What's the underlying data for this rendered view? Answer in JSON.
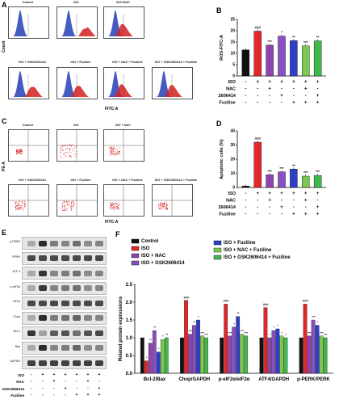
{
  "panels": {
    "a": "A",
    "b": "B",
    "c": "C",
    "d": "D",
    "e": "E",
    "f": "F"
  },
  "panelA": {
    "titles": [
      "Control",
      "ISO",
      "ISO+NAC",
      "ISO + GSK2606414",
      "ISO + Fuziline",
      "ISO + NAC + Fuziline",
      "ISO + GSK2606414 + Fuziline"
    ],
    "ylabel": "Count",
    "xlabel": "FITC-A"
  },
  "panelC": {
    "titles": [
      "Control",
      "ISO",
      "ISO + NAC",
      "ISO + GSK2606414",
      "ISO + Fuziline",
      "ISO + NAC + Fuziline",
      "ISO + GSK2606414 + Fuziline"
    ],
    "ylabel": "PE-A",
    "xlabel": "FITC-A"
  },
  "panelE": {
    "labels": [
      "p-PERK",
      "PERK",
      "ATF 4",
      "p-eIF2α",
      "eIF2α",
      "Chop",
      "Bcl-2",
      "Bax",
      "GAPDH"
    ],
    "rows": [
      "ISO",
      "NAC",
      "GSK2606414",
      "Fuziline"
    ],
    "signs": [
      [
        "-",
        "+",
        "+",
        "+",
        "+",
        "+",
        "+"
      ],
      [
        "-",
        "-",
        "+",
        "-",
        "-",
        "+",
        "-"
      ],
      [
        "-",
        "-",
        "-",
        "+",
        "-",
        "-",
        "+"
      ],
      [
        "-",
        "-",
        "-",
        "-",
        "+",
        "+",
        "+"
      ]
    ]
  },
  "groupTable": {
    "rows": [
      "ISO",
      "NAC",
      "GSK2606414",
      "Fuziline"
    ],
    "signs": [
      [
        "-",
        "+",
        "+",
        "+",
        "+",
        "+",
        "+"
      ],
      [
        "-",
        "-",
        "+",
        "-",
        "-",
        "+",
        "-"
      ],
      [
        "-",
        "-",
        "-",
        "+",
        "-",
        "-",
        "+"
      ],
      [
        "-",
        "-",
        "-",
        "-",
        "+",
        "+",
        "+"
      ]
    ]
  },
  "colors": {
    "control": "#111111",
    "iso": "#e3262a",
    "nac": "#8e44ad",
    "gsk": "#8a4fc2",
    "fuz": "#2d3fc8",
    "nacfuz": "#7ec850",
    "gskfuz": "#41b84a"
  },
  "chart_data": [
    {
      "type": "bar",
      "ylabel": "ROS-FITC-A",
      "ylim": [
        0,
        25
      ],
      "yticks": [
        0,
        5,
        10,
        15,
        20,
        25
      ],
      "values": [
        11.5,
        19.8,
        13.6,
        17.6,
        15.6,
        13.3,
        15.5
      ],
      "sig": [
        "",
        "###",
        "***",
        "*",
        "**",
        "***",
        "**"
      ]
    },
    {
      "type": "bar",
      "ylabel": "Apoptotic cells (%)",
      "ylim": [
        0,
        40
      ],
      "yticks": [
        0,
        10,
        20,
        30,
        40
      ],
      "values": [
        1,
        32,
        9,
        11,
        13,
        8,
        8.5
      ],
      "sig": [
        "",
        "###",
        "***",
        "***",
        "**",
        "***",
        "***"
      ]
    },
    {
      "type": "bar",
      "ylabel": "Related protein expressions",
      "ylim": [
        0,
        2.5
      ],
      "yticks": [
        0.0,
        0.5,
        1.0,
        1.5,
        2.0,
        2.5
      ],
      "categories": [
        "Bcl-2/Bax",
        "Chop/GAPDH",
        "p-eIF2α/eIF2α",
        "ATF4/GAPDH",
        "p-PERK/PERK"
      ],
      "series": [
        {
          "name": "Control",
          "values": [
            1.0,
            1.0,
            1.0,
            1.0,
            1.0
          ]
        },
        {
          "name": "ISO",
          "values": [
            0.35,
            2.05,
            1.95,
            1.85,
            1.95
          ]
        },
        {
          "name": "ISO + NAC",
          "values": [
            0.85,
            1.1,
            1.05,
            1.0,
            1.05
          ]
        },
        {
          "name": "ISO + GSK2606414",
          "values": [
            1.2,
            1.35,
            1.3,
            1.2,
            1.5
          ]
        },
        {
          "name": "ISO + Fuziline",
          "values": [
            0.6,
            1.5,
            1.6,
            1.25,
            1.35
          ]
        },
        {
          "name": "ISO + NAC + Fuziline",
          "values": [
            0.95,
            1.05,
            1.1,
            1.05,
            1.05
          ]
        },
        {
          "name": "ISO + GSK2606414 + Fuziline",
          "values": [
            1.0,
            1.0,
            1.05,
            1.0,
            1.0
          ]
        }
      ],
      "sig": [
        [
          "",
          "*",
          "**",
          "**",
          "*",
          "*",
          "**"
        ],
        [
          "",
          "###",
          "***",
          "**",
          "*",
          "***",
          "***"
        ],
        [
          "",
          "###",
          "***",
          "*",
          "**",
          "***",
          "***"
        ],
        [
          "",
          "###",
          "*",
          "*",
          "*",
          "*",
          "*"
        ],
        [
          "",
          "###",
          "***",
          "***",
          "*",
          "***",
          "***"
        ]
      ]
    }
  ]
}
